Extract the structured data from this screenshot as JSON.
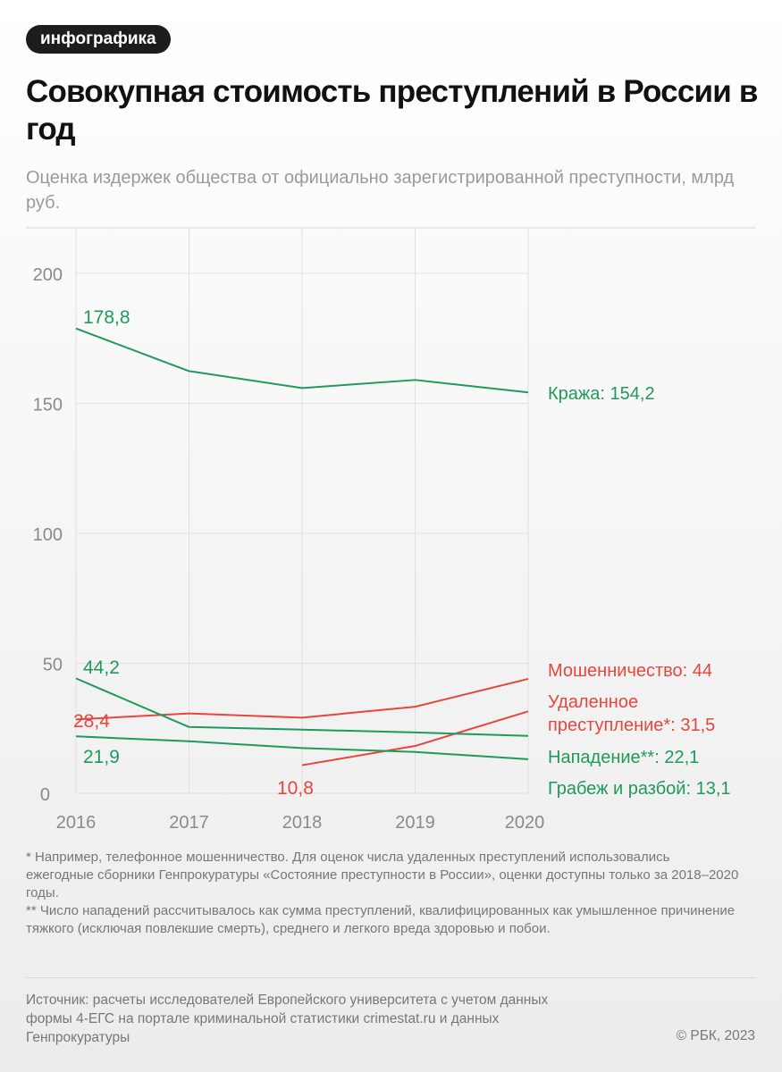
{
  "tag": "инфографика",
  "title": "Совокупная стоимость преступлений в России в год",
  "subtitle": "Оценка издержек общества от официально зарегистрированной преступности, млрд руб.",
  "chart_data": {
    "type": "line",
    "title": "Совокупная стоимость преступлений в России в год",
    "ylabel": "млрд руб.",
    "x": [
      2016,
      2017,
      2018,
      2019,
      2020
    ],
    "ylim": [
      0,
      200
    ],
    "yticks": [
      0,
      50,
      100,
      150,
      200
    ],
    "grid": true,
    "series": [
      {
        "name": "Кража",
        "end_label": "Кража: 154,2",
        "color": "#1f9a5b",
        "values": [
          178.8,
          162.4,
          155.9,
          159.0,
          154.2
        ],
        "start_label": "178,8"
      },
      {
        "name": "Мошенничество",
        "end_label": "Мошенничество: 44",
        "color": "#e8453c",
        "values": [
          28.4,
          30.7,
          29.1,
          33.3,
          44.0
        ],
        "start_label": "28,4"
      },
      {
        "name": "Удаленное преступление*",
        "end_label": "Удаленное\nпреступление*: 31,5",
        "color": "#e8453c",
        "values": [
          null,
          null,
          10.8,
          18.2,
          31.5
        ],
        "start_label": "10,8"
      },
      {
        "name": "Нападение**",
        "end_label": "Нападение**: 22,1",
        "color": "#1f9a5b",
        "values": [
          44.2,
          25.5,
          24.5,
          23.4,
          22.1
        ],
        "start_label": "44,2"
      },
      {
        "name": "Грабеж и разбой",
        "end_label": "Грабеж и разбой: 13,1",
        "color": "#1f9a5b",
        "values": [
          21.9,
          20.0,
          17.4,
          15.9,
          13.1
        ],
        "start_label": "21,9"
      }
    ]
  },
  "notes": [
    "* Например, телефонное мошенничество. Для оценок числа удаленных преступлений использовались ежегодные сборники Генпрокуратуры «Состояние преступности в России», оценки доступны только за 2018–2020 годы.",
    "** Число нападений рассчитывалось как сумма преступлений, квалифицированных как умышленное причинение тяжкого (исключая повлекшие смерть), среднего и легкого вреда здоровью и побои."
  ],
  "source": "Источник: расчеты исследователей Европейского университета с учетом данных формы 4-ЕГС на портале криминальной статистики crimestat.ru и данных Генпрокуратуры",
  "copyright": "© РБК, 2023"
}
